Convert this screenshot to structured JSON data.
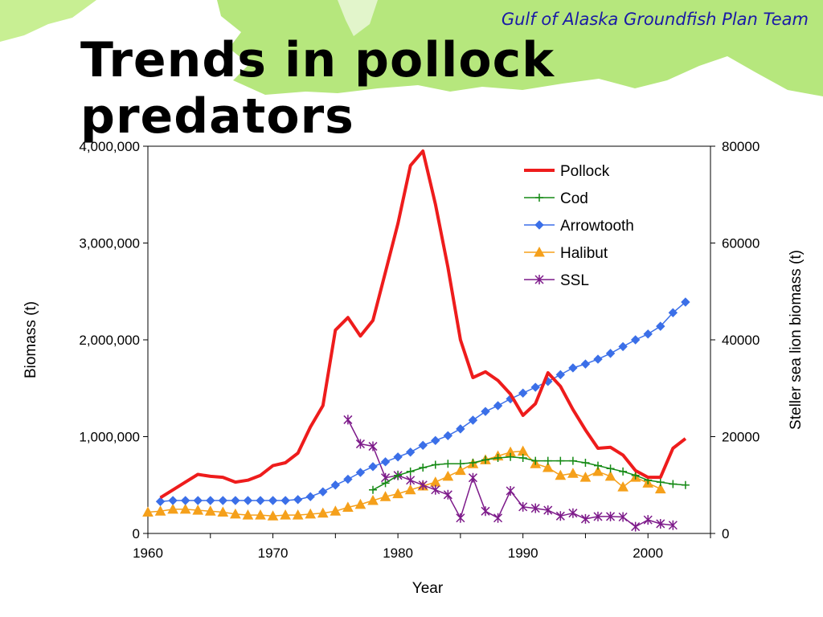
{
  "slide": {
    "header": "Gulf of Alaska Groundfish Plan Team",
    "title": "Trends in pollock predators"
  },
  "colors": {
    "pollock": "#ee1c1c",
    "cod": "#158a15",
    "arrowtooth": "#3b6fe8",
    "halibut": "#f5a01b",
    "ssl": "#7d1a8a",
    "map_land": "#b6e77d",
    "header_text": "#1a1aa6"
  },
  "chart_data": {
    "type": "line",
    "xlabel": "Year",
    "ylabel": "Biomass (t)",
    "y2label": "Steller sea lion biomass (t)",
    "xlim": [
      1960,
      2005
    ],
    "ylim": [
      0,
      4000000
    ],
    "y2lim": [
      0,
      80000
    ],
    "xticks": [
      1960,
      1970,
      1980,
      1990,
      2000
    ],
    "yticks": [
      0,
      1000000,
      2000000,
      3000000,
      4000000
    ],
    "ytick_labels": [
      "0",
      "1,000,000",
      "2,000,000",
      "3,000,000",
      "4,000,000"
    ],
    "y2ticks": [
      0,
      20000,
      40000,
      60000,
      80000
    ],
    "y2tick_labels": [
      "0",
      "20000",
      "40000",
      "60000",
      "80000"
    ],
    "legend_position": "top-right",
    "series": [
      {
        "name": "Pollock",
        "key": "pollock",
        "axis": "left",
        "marker": "none",
        "x": [
          1961,
          1962,
          1963,
          1964,
          1965,
          1966,
          1967,
          1968,
          1969,
          1970,
          1971,
          1972,
          1973,
          1974,
          1975,
          1976,
          1977,
          1978,
          1979,
          1980,
          1981,
          1982,
          1983,
          1984,
          1985,
          1986,
          1987,
          1988,
          1989,
          1990,
          1991,
          1992,
          1993,
          1994,
          1995,
          1996,
          1997,
          1998,
          1999,
          2000,
          2001,
          2002,
          2003
        ],
        "y": [
          370000,
          450000,
          530000,
          610000,
          590000,
          580000,
          530000,
          550000,
          600000,
          700000,
          730000,
          830000,
          1100000,
          1320000,
          2100000,
          2230000,
          2040000,
          2200000,
          2700000,
          3200000,
          3800000,
          3950000,
          3400000,
          2750000,
          2000000,
          1610000,
          1670000,
          1580000,
          1440000,
          1220000,
          1340000,
          1660000,
          1520000,
          1280000,
          1070000,
          880000,
          890000,
          810000,
          650000,
          580000,
          580000,
          880000,
          980000
        ]
      },
      {
        "name": "Cod",
        "key": "cod",
        "axis": "left",
        "marker": "plus",
        "x": [
          1978,
          1979,
          1980,
          1981,
          1982,
          1983,
          1984,
          1985,
          1986,
          1987,
          1988,
          1989,
          1990,
          1991,
          1992,
          1993,
          1994,
          1995,
          1996,
          1997,
          1998,
          1999,
          2000,
          2001,
          2002,
          2003
        ],
        "y": [
          450000,
          520000,
          600000,
          640000,
          680000,
          710000,
          720000,
          720000,
          730000,
          760000,
          780000,
          790000,
          780000,
          750000,
          750000,
          750000,
          750000,
          730000,
          700000,
          670000,
          640000,
          600000,
          550000,
          530000,
          510000,
          500000
        ]
      },
      {
        "name": "Arrowtooth",
        "key": "arrowtooth",
        "axis": "left",
        "marker": "diamond",
        "x": [
          1961,
          1962,
          1963,
          1964,
          1965,
          1966,
          1967,
          1968,
          1969,
          1970,
          1971,
          1972,
          1973,
          1974,
          1975,
          1976,
          1977,
          1978,
          1979,
          1980,
          1981,
          1982,
          1983,
          1984,
          1985,
          1986,
          1987,
          1988,
          1989,
          1990,
          1991,
          1992,
          1993,
          1994,
          1995,
          1996,
          1997,
          1998,
          1999,
          2000,
          2001,
          2002,
          2003
        ],
        "y": [
          330000,
          340000,
          340000,
          340000,
          340000,
          340000,
          340000,
          340000,
          340000,
          340000,
          340000,
          350000,
          380000,
          430000,
          500000,
          560000,
          630000,
          690000,
          740000,
          790000,
          840000,
          910000,
          960000,
          1010000,
          1080000,
          1170000,
          1260000,
          1320000,
          1390000,
          1450000,
          1510000,
          1570000,
          1640000,
          1710000,
          1750000,
          1800000,
          1860000,
          1930000,
          2000000,
          2060000,
          2140000,
          2280000,
          2390000
        ]
      },
      {
        "name": "Halibut",
        "key": "halibut",
        "axis": "left",
        "marker": "triangle",
        "x": [
          1960,
          1961,
          1962,
          1963,
          1964,
          1965,
          1966,
          1967,
          1968,
          1969,
          1970,
          1971,
          1972,
          1973,
          1974,
          1975,
          1976,
          1977,
          1978,
          1979,
          1980,
          1981,
          1982,
          1983,
          1984,
          1985,
          1986,
          1987,
          1988,
          1989,
          1990,
          1991,
          1992,
          1993,
          1994,
          1995,
          1996,
          1997,
          1998,
          1999,
          2000,
          2001
        ],
        "y": [
          220000,
          230000,
          250000,
          250000,
          240000,
          230000,
          220000,
          200000,
          190000,
          190000,
          180000,
          190000,
          190000,
          200000,
          210000,
          230000,
          270000,
          300000,
          340000,
          380000,
          410000,
          450000,
          490000,
          530000,
          590000,
          650000,
          720000,
          760000,
          800000,
          840000,
          850000,
          720000,
          680000,
          600000,
          620000,
          580000,
          640000,
          590000,
          480000,
          580000,
          520000,
          460000
        ]
      },
      {
        "name": "SSL",
        "key": "ssl",
        "axis": "right",
        "marker": "star",
        "x": [
          1976,
          1977,
          1978,
          1979,
          1980,
          1981,
          1982,
          1983,
          1984,
          1985,
          1986,
          1987,
          1988,
          1989,
          1990,
          1991,
          1992,
          1993,
          1994,
          1995,
          1996,
          1997,
          1998,
          1999,
          2000,
          2001,
          2002
        ],
        "y": [
          23500,
          18500,
          18000,
          11500,
          12000,
          11000,
          10000,
          9000,
          8000,
          3200,
          11500,
          4600,
          3200,
          8800,
          5500,
          5200,
          4800,
          3600,
          4200,
          3000,
          3500,
          3500,
          3400,
          1400,
          2800,
          2000,
          1700
        ]
      }
    ]
  }
}
